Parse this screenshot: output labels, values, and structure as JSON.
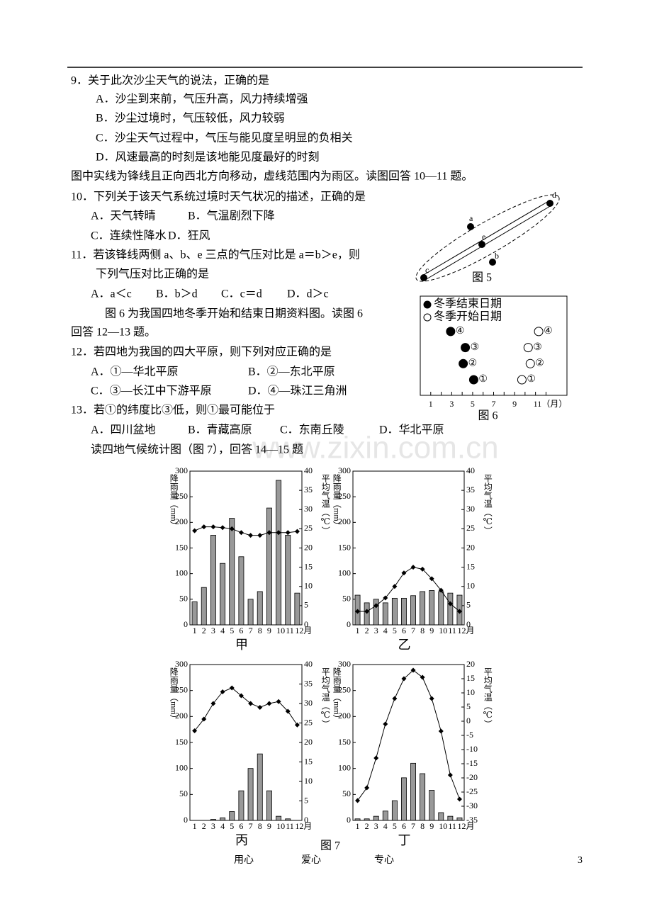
{
  "document": {
    "watermark": "www.zixin.com.cn",
    "q9": {
      "stem": "9．关于此次沙尘天气的说法，正确的是",
      "options": [
        "A．沙尘到来前，气压升高，风力持续增强",
        "B．沙尘过境时，气压较低，风力较弱",
        "C．沙尘天气过程中，气压与能见度呈明显的负相关",
        "D．风速最高的时刻是该地能见度最好的时刻"
      ]
    },
    "intro_10_11": "图中实线为锋线且正向西北方向移动，虚线范围内为雨区。读图回答 10—11 题。",
    "q10": {
      "stem": "10．下列关于该天气系统过境时天气状况的描述，正确的是",
      "options": [
        "A．天气转晴",
        "B．气温剧烈下降",
        "C．连续性降水",
        "D．狂风"
      ]
    },
    "q11": {
      "stem": [
        "11．若该锋线两侧 a、b、e 三点的气压对比是 a＝b＞e，则",
        "下列气压对比正确的是"
      ],
      "options": [
        "A．a＜c",
        "B．b＞d",
        "C．c＝d",
        "D．d＞c"
      ]
    },
    "intro_12_13": [
      "图 6 为我国四地冬季开始和结束日期资料图。读图 6",
      "回答 12—13 题。"
    ],
    "q12": {
      "stem": "12．若四地为我国的四大平原，则下列对应正确的是",
      "options": [
        "A．①—华北平原",
        "B．②—东北平原",
        "C．③—长江中下游平原",
        "D．④—珠江三角洲"
      ]
    },
    "q13": {
      "stem": "13．若①的纬度比③低，则①最可能位于",
      "options": [
        "A．四川盆地",
        "B．青藏高原",
        "C．东南丘陵",
        "D．华北平原"
      ]
    },
    "intro_14_15": "读四地气候统计图（图 7），回答 14—15 题",
    "figure5": {
      "caption": "图 5",
      "points": [
        "a",
        "e",
        "b",
        "c",
        "d"
      ]
    },
    "figure7_caption": "图 7",
    "footer": [
      "用心",
      "爱心",
      "专心"
    ],
    "page_number": 3
  },
  "chart_data": [
    {
      "type": "dot-range",
      "caption": "图 6",
      "categories": [
        "①",
        "②",
        "③",
        "④"
      ],
      "series": [
        {
          "name": "冬季结束日期",
          "marker": "filled",
          "color": "#000000",
          "values": [
            5.1,
            4.1,
            4.3,
            2.9
          ]
        },
        {
          "name": "冬季开始日期",
          "marker": "open",
          "color": "#000000",
          "values": [
            9.7,
            10.5,
            10.3,
            11.3
          ]
        }
      ],
      "xlim": [
        0,
        14
      ],
      "xticks": [
        1,
        3,
        5,
        7,
        9,
        {
          "value": 11,
          "label": "11（月）"
        }
      ],
      "minor_xticks": [
        2,
        4,
        6,
        8,
        10,
        12
      ]
    },
    {
      "type": "climate",
      "caption": "甲",
      "categories": [
        "1",
        "2",
        "3",
        "4",
        "5",
        "6",
        "7",
        "8",
        "9",
        "10",
        "11",
        "12月"
      ],
      "series": [
        {
          "name": "降雨量（mm）",
          "color": "#999999",
          "values": [
            45,
            73,
            175,
            120,
            208,
            133,
            50,
            65,
            228,
            282,
            175,
            62
          ]
        },
        {
          "name": "平均气温（℃）",
          "axis": "y2",
          "color": "#000000",
          "values": [
            24.5,
            25.5,
            25.5,
            25.3,
            25,
            24,
            23.3,
            23.3,
            24,
            24,
            24,
            24.3
          ]
        }
      ],
      "ylim": [
        0,
        300
      ],
      "yticks": [
        0,
        50,
        100,
        150,
        200,
        250,
        300
      ],
      "y2lim": [
        0,
        40
      ],
      "y2ticks": [
        0,
        5,
        10,
        15,
        20,
        25,
        30,
        35,
        40
      ]
    },
    {
      "type": "climate",
      "caption": "乙",
      "categories": [
        "1",
        "2",
        "3",
        "4",
        "5",
        "6",
        "7",
        "8",
        "9",
        "10",
        "11",
        "12月"
      ],
      "series": [
        {
          "name": "降雨量（mm）",
          "color": "#999999",
          "values": [
            58,
            43,
            50,
            43,
            52,
            52,
            57,
            65,
            67,
            65,
            62,
            58
          ]
        },
        {
          "name": "平均气温（℃）",
          "axis": "y2",
          "color": "#000000",
          "values": [
            3.5,
            3.5,
            5,
            7,
            10,
            13.5,
            15,
            14.5,
            12,
            9,
            5.5,
            3.5
          ]
        }
      ],
      "ylim": [
        0,
        300
      ],
      "yticks": [
        0,
        50,
        100,
        150,
        200,
        250,
        300
      ],
      "y2lim": [
        0,
        40
      ],
      "y2ticks": [
        0,
        5,
        10,
        15,
        20,
        25,
        30,
        35,
        40
      ]
    },
    {
      "type": "climate",
      "caption": "丙",
      "categories": [
        "1",
        "2",
        "3",
        "4",
        "5",
        "6",
        "7",
        "8",
        "9",
        "10",
        "11",
        "12月"
      ],
      "series": [
        {
          "name": "降雨量（mm）",
          "color": "#999999",
          "values": [
            0,
            0,
            2,
            5,
            17,
            57,
            100,
            128,
            57,
            8,
            3,
            0
          ]
        },
        {
          "name": "平均气温（℃）",
          "axis": "y2",
          "color": "#000000",
          "values": [
            23,
            26,
            30,
            33,
            34,
            32,
            30,
            29,
            30,
            30.5,
            28,
            24.5
          ]
        }
      ],
      "ylim": [
        0,
        300
      ],
      "yticks": [
        0,
        50,
        100,
        150,
        200,
        250,
        300
      ],
      "y2lim": [
        0,
        40
      ],
      "y2ticks": [
        0,
        5,
        10,
        15,
        20,
        25,
        30,
        35,
        40
      ]
    },
    {
      "type": "climate",
      "caption": "丁",
      "categories": [
        "1",
        "2",
        "3",
        "4",
        "5",
        "6",
        "7",
        "8",
        "9",
        "10",
        "11",
        "12月"
      ],
      "series": [
        {
          "name": "降雨量（mm）",
          "color": "#999999",
          "values": [
            3,
            3,
            8,
            18,
            38,
            82,
            110,
            90,
            58,
            15,
            8,
            5
          ]
        },
        {
          "name": "平均气温（℃）",
          "axis": "y2",
          "color": "#000000",
          "values": [
            -28,
            -23.5,
            -13,
            -1,
            8,
            15,
            18,
            15.5,
            8,
            -3.5,
            -19,
            -27.5
          ]
        }
      ],
      "ylim": [
        0,
        300
      ],
      "yticks": [
        0,
        50,
        100,
        150,
        200,
        250,
        300
      ],
      "y2lim": [
        -35,
        20
      ],
      "y2ticks": [
        -35,
        -30,
        -25,
        -20,
        -15,
        -10,
        -5,
        0,
        5,
        10,
        15,
        20
      ]
    }
  ]
}
